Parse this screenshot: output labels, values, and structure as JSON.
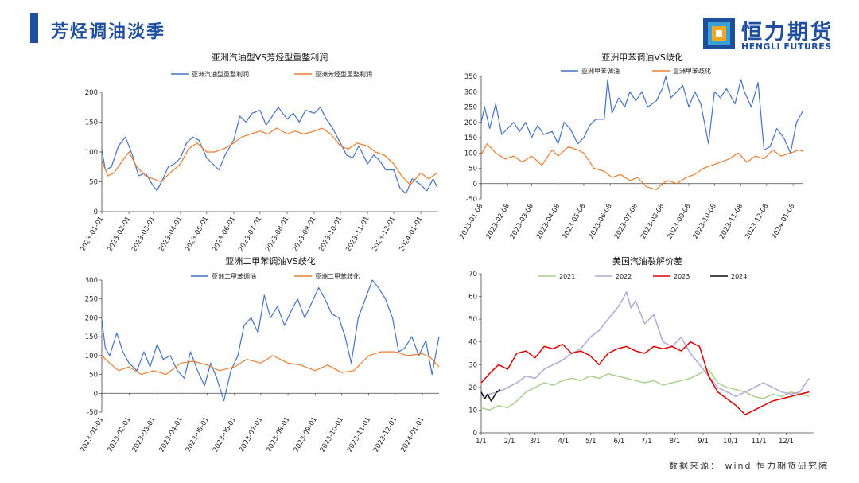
{
  "page": {
    "title": "芳烃调油淡季",
    "logo_cn": "恒力期货",
    "logo_en": "HENGLI FUTURES",
    "source": "数据来源： wind 恒力期货研究院"
  },
  "colors": {
    "blue": "#4472c4",
    "orange": "#ed7d31",
    "green": "#a9d18e",
    "lavender": "#b4a7d6",
    "red": "#e00000",
    "black": "#111111",
    "brand": "#1f4e9e"
  },
  "chart_data": [
    {
      "type": "line",
      "title": "亚洲汽油型VS芳烃型重整利润",
      "x_kind": "date",
      "x_start": "2023-01-01",
      "x_end": "2024-01-20",
      "xticks": [
        "2023-01-01",
        "2023-02-01",
        "2023-03-01",
        "2023-04-01",
        "2023-05-01",
        "2023-06-01",
        "2023-07-01",
        "2023-08-01",
        "2023-09-01",
        "2023-10-01",
        "2023-11-01",
        "2023-12-01",
        "2024-01-01"
      ],
      "ylim": [
        0,
        200
      ],
      "yticks": [
        0,
        50,
        100,
        150,
        200
      ],
      "legend_position": "top",
      "series": [
        {
          "name": "亚洲汽油型重整利润",
          "color": "#4472c4",
          "x": [
            "2023-01-01",
            "2023-01-05",
            "2023-01-12",
            "2023-01-20",
            "2023-01-28",
            "2023-02-05",
            "2023-02-12",
            "2023-02-20",
            "2023-02-28",
            "2023-03-05",
            "2023-03-12",
            "2023-03-18",
            "2023-03-25",
            "2023-04-01",
            "2023-04-08",
            "2023-04-15",
            "2023-04-22",
            "2023-05-01",
            "2023-05-08",
            "2023-05-15",
            "2023-05-22",
            "2023-06-01",
            "2023-06-08",
            "2023-06-15",
            "2023-06-22",
            "2023-07-01",
            "2023-07-08",
            "2023-07-15",
            "2023-07-22",
            "2023-08-01",
            "2023-08-08",
            "2023-08-15",
            "2023-08-22",
            "2023-09-01",
            "2023-09-08",
            "2023-09-15",
            "2023-09-22",
            "2023-10-01",
            "2023-10-08",
            "2023-10-15",
            "2023-10-22",
            "2023-11-01",
            "2023-11-08",
            "2023-11-15",
            "2023-11-22",
            "2023-12-01",
            "2023-12-08",
            "2023-12-15",
            "2023-12-22",
            "2024-01-01",
            "2024-01-08",
            "2024-01-15",
            "2024-01-20"
          ],
          "values": [
            105,
            70,
            75,
            110,
            125,
            95,
            60,
            65,
            45,
            35,
            55,
            75,
            80,
            90,
            115,
            125,
            120,
            90,
            80,
            70,
            95,
            120,
            160,
            150,
            165,
            170,
            145,
            160,
            175,
            155,
            165,
            150,
            170,
            165,
            175,
            155,
            140,
            115,
            95,
            90,
            110,
            80,
            95,
            85,
            70,
            70,
            40,
            30,
            55,
            45,
            35,
            55,
            40
          ]
        },
        {
          "name": "亚洲芳烃型重整利润",
          "color": "#ed7d31",
          "x": [
            "2023-01-01",
            "2023-01-08",
            "2023-01-15",
            "2023-01-22",
            "2023-02-01",
            "2023-02-10",
            "2023-02-20",
            "2023-03-01",
            "2023-03-10",
            "2023-03-20",
            "2023-04-01",
            "2023-04-10",
            "2023-04-20",
            "2023-05-01",
            "2023-05-10",
            "2023-05-20",
            "2023-06-01",
            "2023-06-10",
            "2023-06-20",
            "2023-07-01",
            "2023-07-10",
            "2023-07-20",
            "2023-08-01",
            "2023-08-10",
            "2023-08-20",
            "2023-09-01",
            "2023-09-10",
            "2023-09-20",
            "2023-10-01",
            "2023-10-10",
            "2023-10-20",
            "2023-11-01",
            "2023-11-10",
            "2023-11-20",
            "2023-12-01",
            "2023-12-10",
            "2023-12-20",
            "2024-01-01",
            "2024-01-10",
            "2024-01-20"
          ],
          "values": [
            85,
            60,
            65,
            80,
            100,
            75,
            60,
            55,
            50,
            65,
            80,
            105,
            115,
            100,
            100,
            105,
            115,
            125,
            130,
            135,
            130,
            140,
            130,
            135,
            130,
            135,
            140,
            130,
            110,
            105,
            115,
            110,
            100,
            95,
            80,
            60,
            45,
            65,
            55,
            65
          ]
        }
      ]
    },
    {
      "type": "line",
      "title": "亚洲甲苯调油VS歧化",
      "x_kind": "date",
      "x_start": "2023-01-08",
      "x_end": "2024-01-20",
      "xticks": [
        "2023-01-08",
        "2023-02-08",
        "2023-03-08",
        "2023-04-08",
        "2023-05-08",
        "2023-06-08",
        "2023-07-08",
        "2023-08-08",
        "2023-09-08",
        "2023-10-08",
        "2023-11-08",
        "2023-12-08",
        "2024-01-08"
      ],
      "ylim": [
        -50,
        350
      ],
      "yticks": [
        -50,
        0,
        50,
        100,
        150,
        200,
        250,
        300,
        350
      ],
      "legend_position": "top",
      "series": [
        {
          "name": "亚洲甲苯调油",
          "color": "#4472c4",
          "x": [
            "2023-01-08",
            "2023-01-12",
            "2023-01-18",
            "2023-01-25",
            "2023-02-01",
            "2023-02-08",
            "2023-02-15",
            "2023-02-22",
            "2023-03-01",
            "2023-03-08",
            "2023-03-15",
            "2023-03-22",
            "2023-04-01",
            "2023-04-08",
            "2023-04-15",
            "2023-04-22",
            "2023-05-01",
            "2023-05-08",
            "2023-05-15",
            "2023-05-22",
            "2023-06-01",
            "2023-06-05",
            "2023-06-10",
            "2023-06-18",
            "2023-06-25",
            "2023-07-01",
            "2023-07-08",
            "2023-07-15",
            "2023-07-22",
            "2023-08-01",
            "2023-08-08",
            "2023-08-12",
            "2023-08-18",
            "2023-08-25",
            "2023-09-01",
            "2023-09-08",
            "2023-09-15",
            "2023-09-22",
            "2023-10-01",
            "2023-10-08",
            "2023-10-15",
            "2023-10-22",
            "2023-11-01",
            "2023-11-08",
            "2023-11-12",
            "2023-11-20",
            "2023-11-28",
            "2023-12-05",
            "2023-12-12",
            "2023-12-20",
            "2023-12-28",
            "2024-01-05",
            "2024-01-12",
            "2024-01-20"
          ],
          "values": [
            200,
            250,
            180,
            260,
            160,
            180,
            200,
            170,
            200,
            150,
            190,
            160,
            170,
            130,
            200,
            180,
            130,
            150,
            190,
            210,
            210,
            340,
            230,
            280,
            250,
            300,
            270,
            300,
            250,
            270,
            310,
            350,
            280,
            300,
            320,
            250,
            300,
            260,
            130,
            300,
            280,
            310,
            260,
            340,
            300,
            250,
            330,
            110,
            120,
            180,
            150,
            100,
            200,
            240
          ]
        },
        {
          "name": "亚洲甲苯歧化",
          "color": "#ed7d31",
          "x": [
            "2023-01-08",
            "2023-01-15",
            "2023-01-25",
            "2023-02-05",
            "2023-02-15",
            "2023-02-25",
            "2023-03-08",
            "2023-03-20",
            "2023-04-01",
            "2023-04-08",
            "2023-04-20",
            "2023-05-01",
            "2023-05-08",
            "2023-05-20",
            "2023-06-01",
            "2023-06-10",
            "2023-06-20",
            "2023-07-01",
            "2023-07-10",
            "2023-07-20",
            "2023-08-01",
            "2023-08-08",
            "2023-08-15",
            "2023-08-25",
            "2023-09-05",
            "2023-09-15",
            "2023-09-25",
            "2023-10-05",
            "2023-10-15",
            "2023-10-25",
            "2023-11-05",
            "2023-11-15",
            "2023-11-25",
            "2023-12-05",
            "2023-12-15",
            "2023-12-25",
            "2024-01-05",
            "2024-01-15",
            "2024-01-20"
          ],
          "values": [
            95,
            130,
            100,
            80,
            90,
            70,
            90,
            60,
            110,
            90,
            120,
            110,
            100,
            50,
            40,
            20,
            30,
            10,
            20,
            -10,
            -20,
            0,
            10,
            0,
            20,
            30,
            50,
            60,
            70,
            80,
            100,
            70,
            90,
            80,
            110,
            90,
            100,
            110,
            105
          ]
        }
      ]
    },
    {
      "type": "line",
      "title": "亚洲二甲苯调油VS歧化",
      "x_kind": "date",
      "x_start": "2023-01-01",
      "x_end": "2024-01-20",
      "xticks": [
        "2023-01-01",
        "2023-02-01",
        "2023-03-01",
        "2023-04-01",
        "2023-05-01",
        "2023-06-01",
        "2023-07-01",
        "2023-08-01",
        "2023-09-01",
        "2023-10-01",
        "2023-11-01",
        "2023-12-01",
        "2024-01-01"
      ],
      "ylim": [
        -50,
        300
      ],
      "yticks": [
        -50,
        0,
        50,
        100,
        150,
        200,
        250,
        300
      ],
      "legend_position": "top",
      "series": [
        {
          "name": "亚洲二甲苯调油",
          "color": "#4472c4",
          "x": [
            "2023-01-01",
            "2023-01-05",
            "2023-01-10",
            "2023-01-18",
            "2023-01-25",
            "2023-02-01",
            "2023-02-10",
            "2023-02-18",
            "2023-02-25",
            "2023-03-05",
            "2023-03-12",
            "2023-03-20",
            "2023-03-28",
            "2023-04-05",
            "2023-04-12",
            "2023-04-20",
            "2023-04-28",
            "2023-05-05",
            "2023-05-12",
            "2023-05-20",
            "2023-05-28",
            "2023-06-05",
            "2023-06-12",
            "2023-06-20",
            "2023-06-28",
            "2023-07-05",
            "2023-07-12",
            "2023-07-20",
            "2023-07-28",
            "2023-08-05",
            "2023-08-12",
            "2023-08-20",
            "2023-08-28",
            "2023-09-05",
            "2023-09-12",
            "2023-09-20",
            "2023-09-28",
            "2023-10-05",
            "2023-10-12",
            "2023-10-20",
            "2023-10-28",
            "2023-11-05",
            "2023-11-12",
            "2023-11-20",
            "2023-11-28",
            "2023-12-05",
            "2023-12-12",
            "2023-12-20",
            "2023-12-28",
            "2024-01-05",
            "2024-01-12",
            "2024-01-20"
          ],
          "values": [
            195,
            120,
            100,
            160,
            110,
            80,
            60,
            110,
            70,
            130,
            90,
            100,
            60,
            40,
            110,
            60,
            20,
            80,
            40,
            -20,
            60,
            100,
            180,
            200,
            160,
            260,
            200,
            230,
            180,
            220,
            250,
            200,
            240,
            280,
            250,
            210,
            200,
            150,
            80,
            200,
            250,
            300,
            280,
            250,
            200,
            110,
            120,
            150,
            100,
            140,
            50,
            150
          ]
        },
        {
          "name": "亚洲二甲苯歧化",
          "color": "#ed7d31",
          "x": [
            "2023-01-01",
            "2023-01-10",
            "2023-01-20",
            "2023-02-01",
            "2023-02-15",
            "2023-03-01",
            "2023-03-15",
            "2023-04-01",
            "2023-04-15",
            "2023-05-01",
            "2023-05-15",
            "2023-06-01",
            "2023-06-15",
            "2023-07-01",
            "2023-07-15",
            "2023-08-01",
            "2023-08-15",
            "2023-09-01",
            "2023-09-15",
            "2023-10-01",
            "2023-10-15",
            "2023-11-01",
            "2023-11-15",
            "2023-12-01",
            "2023-12-15",
            "2024-01-01",
            "2024-01-10",
            "2024-01-20"
          ],
          "values": [
            100,
            80,
            60,
            70,
            50,
            60,
            50,
            80,
            85,
            75,
            60,
            70,
            90,
            80,
            100,
            80,
            75,
            60,
            75,
            55,
            60,
            100,
            110,
            110,
            100,
            105,
            95,
            70
          ]
        }
      ]
    },
    {
      "type": "line",
      "title": "美国汽油裂解价差",
      "x_kind": "month-day",
      "xticks": [
        "1/1",
        "2/1",
        "3/1",
        "4/1",
        "5/1",
        "6/1",
        "7/1",
        "8/1",
        "9/1",
        "10/1",
        "11/1",
        "12/1"
      ],
      "ylim": [
        0,
        70
      ],
      "yticks": [
        0,
        10,
        20,
        30,
        40,
        50,
        60,
        70
      ],
      "legend_position": "top",
      "series": [
        {
          "name": "2021",
          "color": "#a9d18e",
          "x": [
            1,
            10,
            20,
            30,
            40,
            50,
            60,
            70,
            80,
            90,
            100,
            110,
            120,
            130,
            140,
            150,
            160,
            170,
            180,
            190,
            200,
            210,
            220,
            230,
            240,
            250,
            260,
            270,
            280,
            290,
            300,
            310,
            320,
            330,
            340,
            350,
            360
          ],
          "values": [
            11,
            10,
            12,
            11,
            14,
            18,
            20,
            22,
            21,
            23,
            24,
            23,
            25,
            24,
            26,
            25,
            24,
            23,
            22,
            23,
            21,
            22,
            23,
            24,
            26,
            28,
            22,
            20,
            19,
            18,
            16,
            15,
            17,
            16,
            18,
            17,
            16
          ]
        },
        {
          "name": "2022",
          "color": "#b4a7d6",
          "x": [
            1,
            10,
            20,
            30,
            40,
            50,
            60,
            70,
            80,
            90,
            100,
            110,
            120,
            130,
            140,
            150,
            155,
            160,
            165,
            170,
            180,
            190,
            200,
            210,
            220,
            230,
            240,
            250,
            260,
            270,
            280,
            290,
            300,
            310,
            320,
            330,
            340,
            350,
            360
          ],
          "values": [
            16,
            17,
            18,
            20,
            22,
            25,
            24,
            28,
            30,
            32,
            35,
            37,
            42,
            45,
            50,
            55,
            58,
            62,
            55,
            58,
            48,
            52,
            40,
            38,
            42,
            35,
            30,
            25,
            20,
            18,
            16,
            18,
            20,
            22,
            20,
            18,
            17,
            18,
            24
          ]
        },
        {
          "name": "2023",
          "color": "#e00000",
          "x": [
            1,
            10,
            20,
            30,
            40,
            50,
            60,
            70,
            80,
            90,
            100,
            110,
            120,
            130,
            140,
            150,
            160,
            170,
            180,
            190,
            200,
            210,
            220,
            230,
            240,
            250,
            260,
            270,
            280,
            290,
            300,
            310,
            320,
            330,
            340,
            350,
            360
          ],
          "values": [
            22,
            26,
            30,
            28,
            35,
            36,
            33,
            38,
            37,
            39,
            35,
            36,
            34,
            30,
            35,
            37,
            38,
            36,
            35,
            38,
            37,
            38,
            36,
            40,
            38,
            25,
            18,
            15,
            12,
            8,
            10,
            12,
            14,
            15,
            16,
            17,
            18
          ]
        },
        {
          "name": "2024",
          "color": "#111111",
          "x": [
            1,
            5,
            8,
            12,
            15,
            18,
            22
          ],
          "values": [
            18,
            15,
            17,
            14,
            16,
            18,
            19
          ]
        }
      ]
    }
  ]
}
